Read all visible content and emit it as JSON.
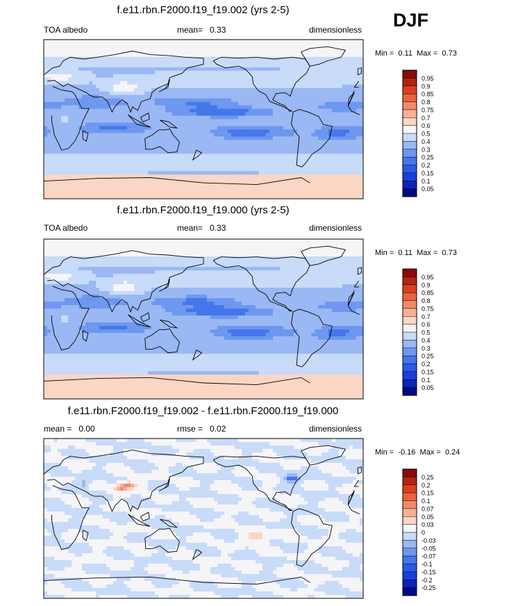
{
  "season": "DJF",
  "panels": [
    {
      "title": "f.e11.rbn.F2000.f19_f19.002 (yrs 2-5)",
      "left_label": "TOA albedo",
      "mean_label": "mean=",
      "mean_value": "0.33",
      "units": "dimensionless",
      "min_label": "Min =",
      "min_value": "0.11",
      "max_label": "Max =",
      "max_value": "0.73"
    },
    {
      "title": "f.e11.rbn.F2000.f19_f19.000 (yrs 2-5)",
      "left_label": "TOA albedo",
      "mean_label": "mean=",
      "mean_value": "0.33",
      "units": "dimensionless",
      "min_label": "Min =",
      "min_value": "0.11",
      "max_label": "Max =",
      "max_value": "0.73"
    },
    {
      "title": "f.e11.rbn.F2000.f19_f19.002 - f.e11.rbn.F2000.f19_f19.000",
      "left_label": "mean =",
      "left_value": "0.00",
      "mean_label": "rmse =",
      "mean_value": "0.02",
      "units": "dimensionless",
      "min_label": "Min =",
      "min_value": "-0.16",
      "max_label": "Max =",
      "max_value": "0.24"
    }
  ],
  "chart_data": [
    {
      "type": "heatmap",
      "title": "f.e11.rbn.F2000.f19_f19.002 (yrs 2-5)",
      "variable": "TOA albedo",
      "units": "dimensionless",
      "mean": 0.33,
      "min": 0.11,
      "max": 0.73,
      "colorbar_levels": [
        0.05,
        0.1,
        0.15,
        0.2,
        0.25,
        0.3,
        0.4,
        0.5,
        0.6,
        0.7,
        0.75,
        0.8,
        0.85,
        0.9,
        0.95
      ],
      "colorbar_colors": [
        "#000a86",
        "#0b24b8",
        "#1a3fd9",
        "#2a5ae8",
        "#4477ea",
        "#6e97ef",
        "#9ab8f3",
        "#c8dbf8",
        "#f5f5f8",
        "#fbd6c4",
        "#f7b096",
        "#f28a6a",
        "#ea6240",
        "#d8401e",
        "#b4220f",
        "#8a0a0a"
      ],
      "lon_range": [
        0,
        360
      ],
      "lat_range": [
        -90,
        90
      ]
    },
    {
      "type": "heatmap",
      "title": "f.e11.rbn.F2000.f19_f19.000 (yrs 2-5)",
      "variable": "TOA albedo",
      "units": "dimensionless",
      "mean": 0.33,
      "min": 0.11,
      "max": 0.73,
      "colorbar_levels": [
        0.05,
        0.1,
        0.15,
        0.2,
        0.25,
        0.3,
        0.4,
        0.5,
        0.6,
        0.7,
        0.75,
        0.8,
        0.85,
        0.9,
        0.95
      ],
      "colorbar_colors": [
        "#000a86",
        "#0b24b8",
        "#1a3fd9",
        "#2a5ae8",
        "#4477ea",
        "#6e97ef",
        "#9ab8f3",
        "#c8dbf8",
        "#f5f5f8",
        "#fbd6c4",
        "#f7b096",
        "#f28a6a",
        "#ea6240",
        "#d8401e",
        "#b4220f",
        "#8a0a0a"
      ],
      "lon_range": [
        0,
        360
      ],
      "lat_range": [
        -90,
        90
      ]
    },
    {
      "type": "heatmap",
      "title": "f.e11.rbn.F2000.f19_f19.002 - f.e11.rbn.F2000.f19_f19.000",
      "units": "dimensionless",
      "mean": 0.0,
      "rmse": 0.02,
      "min": -0.16,
      "max": 0.24,
      "colorbar_levels": [
        -0.25,
        -0.2,
        -0.15,
        -0.1,
        -0.07,
        -0.05,
        -0.03,
        0,
        0.03,
        0.05,
        0.07,
        0.1,
        0.15,
        0.2,
        0.25
      ],
      "colorbar_colors": [
        "#000a86",
        "#0b24b8",
        "#1a3fd9",
        "#2a5ae8",
        "#4477ea",
        "#6e97ef",
        "#9ab8f3",
        "#c8dbf8",
        "#f5f5f8",
        "#fbd6c4",
        "#f7b096",
        "#f28a6a",
        "#ea6240",
        "#d8401e",
        "#b4220f",
        "#8a0a0a"
      ],
      "lon_range": [
        0,
        360
      ],
      "lat_range": [
        -90,
        90
      ]
    }
  ]
}
